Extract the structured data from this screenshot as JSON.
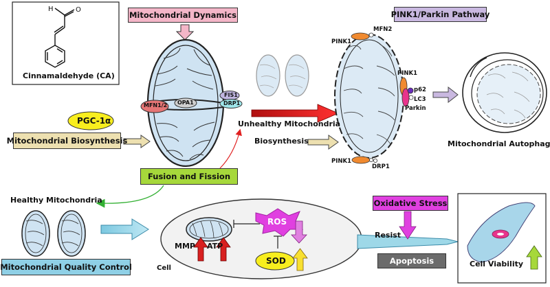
{
  "compound": {
    "name": "Cinnamaldehyde (CA)",
    "atom_h": "H",
    "atom_o": "O"
  },
  "pgc": "PGC-1α",
  "biosynthesis_box": "Mitochondrial Biosynthesis",
  "dynamics_box": "Mitochondrial Dynamics",
  "fusion_fission_box": "Fusion and Fission",
  "proteins": {
    "mfn12": "MFN1/2",
    "opa1": "OPA1",
    "fis1": "FIS1",
    "drp1": "DRP1"
  },
  "unhealthy_label": "Unhealthy Mitochondria",
  "biosynthesis_label": "Biosynthesis",
  "pink_parkin": {
    "title": "PINK1/Parkin Pathway",
    "pink1_top": "PINK1",
    "mfn2": "MFN2",
    "pink1_right": "PINK1",
    "p62": "p62",
    "lc3": "LC3",
    "parkin": "Parkin",
    "pink1_bottom": "PINK1",
    "drp1_bottom": "DRP1"
  },
  "autophagy_label": "Mitochondrial Autophagy",
  "healthy_label": "Healthy Mitochondria",
  "quality_control_box": "Mitochondrial Quality Control",
  "cell": {
    "label": "Cell",
    "mmp": "MMP",
    "atp": "ATP",
    "ros": "ROS",
    "sod": "SOD"
  },
  "oxidative_stress_box": "Oxidative Stress",
  "resist_label": "Resist",
  "apoptosis_box": "Apoptosis",
  "cell_viability_label": "Cell Viability",
  "colors": {
    "pink_box": "#f4b6c8",
    "lavender_box": "#c9b8e0",
    "tan_box": "#ede0b0",
    "green_box": "#a6d83b",
    "blue_box": "#8fd0e6",
    "magenta_box": "#e040e0",
    "gray_box": "#6b6b6b",
    "pgc_yellow": "#f8ee1e",
    "mito_fill": "#cfe3f2",
    "red_arrow": "#e02020",
    "cyan_arrow": "#9ed8e8"
  }
}
